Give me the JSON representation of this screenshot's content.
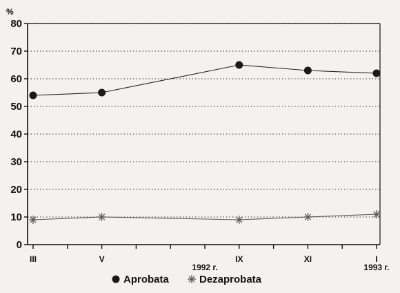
{
  "chart_data": {
    "type": "line",
    "ylabel": "%",
    "ylim": [
      0,
      80
    ],
    "yticks": [
      0,
      10,
      20,
      30,
      40,
      50,
      60,
      70,
      80
    ],
    "x": [
      3,
      5,
      9,
      11,
      13
    ],
    "x_tick_labels": [
      {
        "x": 3,
        "label": "III"
      },
      {
        "x": 5,
        "label": "V"
      },
      {
        "x": 9,
        "label": "IX"
      },
      {
        "x": 11,
        "label": "XI"
      },
      {
        "x": 13,
        "label": "I"
      }
    ],
    "year_labels": [
      {
        "x": 8,
        "label": "1992 г."
      },
      {
        "x": 13,
        "label": "1993 г."
      }
    ],
    "grid": {
      "horizontal": true,
      "style": "dotted"
    },
    "legend_position": "bottom-center",
    "series": [
      {
        "name": "Aprobata",
        "marker": "circle",
        "color": "#222222",
        "values": [
          54,
          55,
          65,
          63,
          62
        ]
      },
      {
        "name": "Dezaprobata",
        "marker": "asterisk",
        "color": "#555555",
        "values": [
          9,
          10,
          9,
          10,
          11
        ]
      }
    ]
  }
}
